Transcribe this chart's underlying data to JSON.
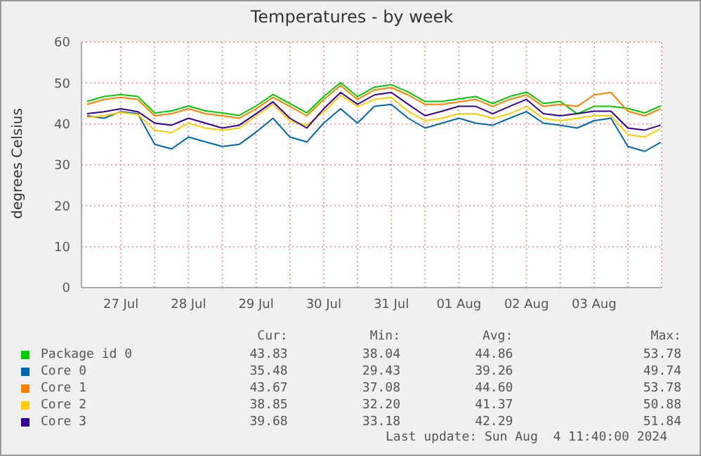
{
  "chart_data": {
    "type": "line",
    "title": "Temperatures - by week",
    "ylabel": "degrees Celsius",
    "x": [
      "2024-07-27T00:00",
      "2024-07-27T06:00",
      "2024-07-27T12:00",
      "2024-07-27T18:00",
      "2024-07-28T00:00",
      "2024-07-28T06:00",
      "2024-07-28T12:00",
      "2024-07-28T18:00",
      "2024-07-29T00:00",
      "2024-07-29T06:00",
      "2024-07-29T12:00",
      "2024-07-29T18:00",
      "2024-07-30T00:00",
      "2024-07-30T06:00",
      "2024-07-30T12:00",
      "2024-07-30T18:00",
      "2024-07-31T00:00",
      "2024-07-31T06:00",
      "2024-07-31T12:00",
      "2024-07-31T18:00",
      "2024-08-01T00:00",
      "2024-08-01T06:00",
      "2024-08-01T12:00",
      "2024-08-01T18:00",
      "2024-08-02T00:00",
      "2024-08-02T06:00",
      "2024-08-02T12:00",
      "2024-08-02T18:00",
      "2024-08-03T00:00",
      "2024-08-03T06:00",
      "2024-08-03T12:00",
      "2024-08-03T18:00",
      "2024-08-04T00:00",
      "2024-08-04T06:00",
      "2024-08-04T11:40"
    ],
    "series": [
      {
        "name": "Package id 0",
        "color": "#00cc00",
        "values": [
          45.5,
          46.7,
          47.2,
          46.7,
          42.7,
          43.2,
          44.4,
          43.2,
          42.7,
          42.1,
          44.4,
          47.2,
          45,
          42.7,
          46.7,
          50.1,
          46.7,
          49,
          49.6,
          47.8,
          45.5,
          45.5,
          46.1,
          46.7,
          45,
          46.7,
          47.8,
          45,
          45.5,
          42.5,
          44.3,
          44.3,
          43.8,
          42.7,
          44.4
        ]
      },
      {
        "name": "Core 0",
        "color": "#0066b3",
        "values": [
          42,
          41.4,
          43,
          42.5,
          35,
          33.9,
          36.8,
          35.6,
          34.5,
          35,
          38,
          41.4,
          36.8,
          35.6,
          40.2,
          43.7,
          40.2,
          44.3,
          44.8,
          41.4,
          39,
          40.2,
          41.4,
          40.2,
          39.7,
          41.4,
          43,
          40.2,
          39.7,
          39,
          40.8,
          41.4,
          34.5,
          33.3,
          35.5
        ]
      },
      {
        "name": "Core 1",
        "color": "#ff8000",
        "values": [
          44.8,
          46,
          46.5,
          46,
          42,
          42.5,
          43.7,
          42.5,
          42,
          41.4,
          43.7,
          46.5,
          44.3,
          42,
          46,
          49.4,
          46,
          48.3,
          48.9,
          47.1,
          44.8,
          44.8,
          45.4,
          46,
          44.3,
          46,
          47.1,
          44.3,
          44.8,
          44.3,
          47.1,
          47.7,
          43.1,
          42,
          43.7
        ]
      },
      {
        "name": "Core 2",
        "color": "#ffcc00",
        "values": [
          41.6,
          42,
          42.8,
          42.3,
          38.5,
          37.9,
          40.2,
          39,
          38.5,
          39,
          42,
          44.8,
          40.8,
          39.7,
          43,
          47,
          44.3,
          46,
          46.5,
          43.1,
          40.8,
          41.4,
          42.5,
          42.5,
          41.4,
          42.5,
          44.3,
          41.4,
          40.8,
          41.4,
          42,
          42,
          37.4,
          36.8,
          38.9
        ]
      },
      {
        "name": "Core 3",
        "color": "#330099",
        "values": [
          42.5,
          43,
          43.7,
          43,
          40.2,
          39.7,
          41.4,
          40.2,
          39,
          39.7,
          42.5,
          45.4,
          41.4,
          39,
          43.7,
          47.7,
          44.8,
          47.1,
          47.7,
          44.8,
          42,
          43.1,
          44.3,
          44.3,
          42.5,
          44.3,
          46,
          42.5,
          42,
          42.5,
          43.1,
          43.1,
          39,
          38.5,
          39.7
        ]
      }
    ],
    "xlim": [
      "2024-07-26T22:00",
      "2024-08-04T12:00"
    ],
    "xticks": [
      {
        "value": "2024-07-27T12:00",
        "label": "27 Jul"
      },
      {
        "value": "2024-07-28T00:00",
        "label": null
      },
      {
        "value": "2024-07-28T12:00",
        "label": "28 Jul"
      },
      {
        "value": "2024-07-29T00:00",
        "label": null
      },
      {
        "value": "2024-07-29T12:00",
        "label": "29 Jul"
      },
      {
        "value": "2024-07-30T00:00",
        "label": null
      },
      {
        "value": "2024-07-30T12:00",
        "label": "30 Jul"
      },
      {
        "value": "2024-07-31T00:00",
        "label": null
      },
      {
        "value": "2024-07-31T12:00",
        "label": "31 Jul"
      },
      {
        "value": "2024-08-01T00:00",
        "label": null
      },
      {
        "value": "2024-08-01T12:00",
        "label": "01 Aug"
      },
      {
        "value": "2024-08-02T00:00",
        "label": null
      },
      {
        "value": "2024-08-02T12:00",
        "label": "02 Aug"
      },
      {
        "value": "2024-08-03T00:00",
        "label": null
      },
      {
        "value": "2024-08-03T12:00",
        "label": "03 Aug"
      },
      {
        "value": "2024-08-04T00:00",
        "label": null
      }
    ],
    "ylim": [
      0,
      60
    ],
    "yticks": [
      0,
      10,
      20,
      30,
      40,
      50,
      60
    ],
    "grid": true,
    "legend": "bottom",
    "marker": "none",
    "line_style": "solid",
    "annotations": [
      "Cur:",
      "Min:",
      "Avg:",
      "Max:",
      "43.83",
      "38.04",
      "44.86",
      "53.78",
      "35.48",
      "29.43",
      "39.26",
      "49.74",
      "43.67",
      "37.08",
      "44.60",
      "53.78",
      "38.85",
      "32.20",
      "41.37",
      "50.88",
      "39.68",
      "33.18",
      "42.29",
      "51.84",
      "Last update: Sun Aug  4 11:40:00 2024"
    ]
  }
}
